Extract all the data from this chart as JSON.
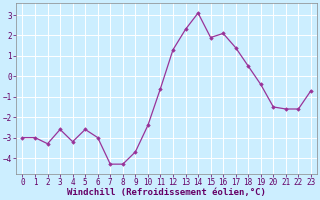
{
  "x": [
    0,
    1,
    2,
    3,
    4,
    5,
    6,
    7,
    8,
    9,
    10,
    11,
    12,
    13,
    14,
    15,
    16,
    17,
    18,
    19,
    20,
    21,
    22,
    23
  ],
  "y": [
    -3.0,
    -3.0,
    -3.3,
    -2.6,
    -3.2,
    -2.6,
    -3.0,
    -4.3,
    -4.3,
    -3.7,
    -2.4,
    -0.6,
    1.3,
    2.3,
    3.1,
    1.9,
    2.1,
    1.4,
    0.5,
    -0.4,
    -1.5,
    -1.6,
    -1.6,
    -0.7
  ],
  "line_color": "#993399",
  "marker": "D",
  "marker_size": 1.8,
  "linewidth": 0.9,
  "background_color": "#cceeff",
  "grid_color": "#ffffff",
  "xlabel": "Windchill (Refroidissement éolien,°C)",
  "xlabel_fontsize": 6.5,
  "tick_fontsize": 5.5,
  "ylim": [
    -4.8,
    3.6
  ],
  "yticks": [
    -4,
    -3,
    -2,
    -1,
    0,
    1,
    2,
    3
  ],
  "xlim": [
    -0.5,
    23.5
  ],
  "xticks": [
    0,
    1,
    2,
    3,
    4,
    5,
    6,
    7,
    8,
    9,
    10,
    11,
    12,
    13,
    14,
    15,
    16,
    17,
    18,
    19,
    20,
    21,
    22,
    23
  ],
  "xtick_labels": [
    "0",
    "1",
    "2",
    "3",
    "4",
    "5",
    "6",
    "7",
    "8",
    "9",
    "10",
    "11",
    "12",
    "13",
    "14",
    "15",
    "16",
    "17",
    "18",
    "19",
    "20",
    "21",
    "22",
    "23"
  ],
  "text_color": "#660066"
}
